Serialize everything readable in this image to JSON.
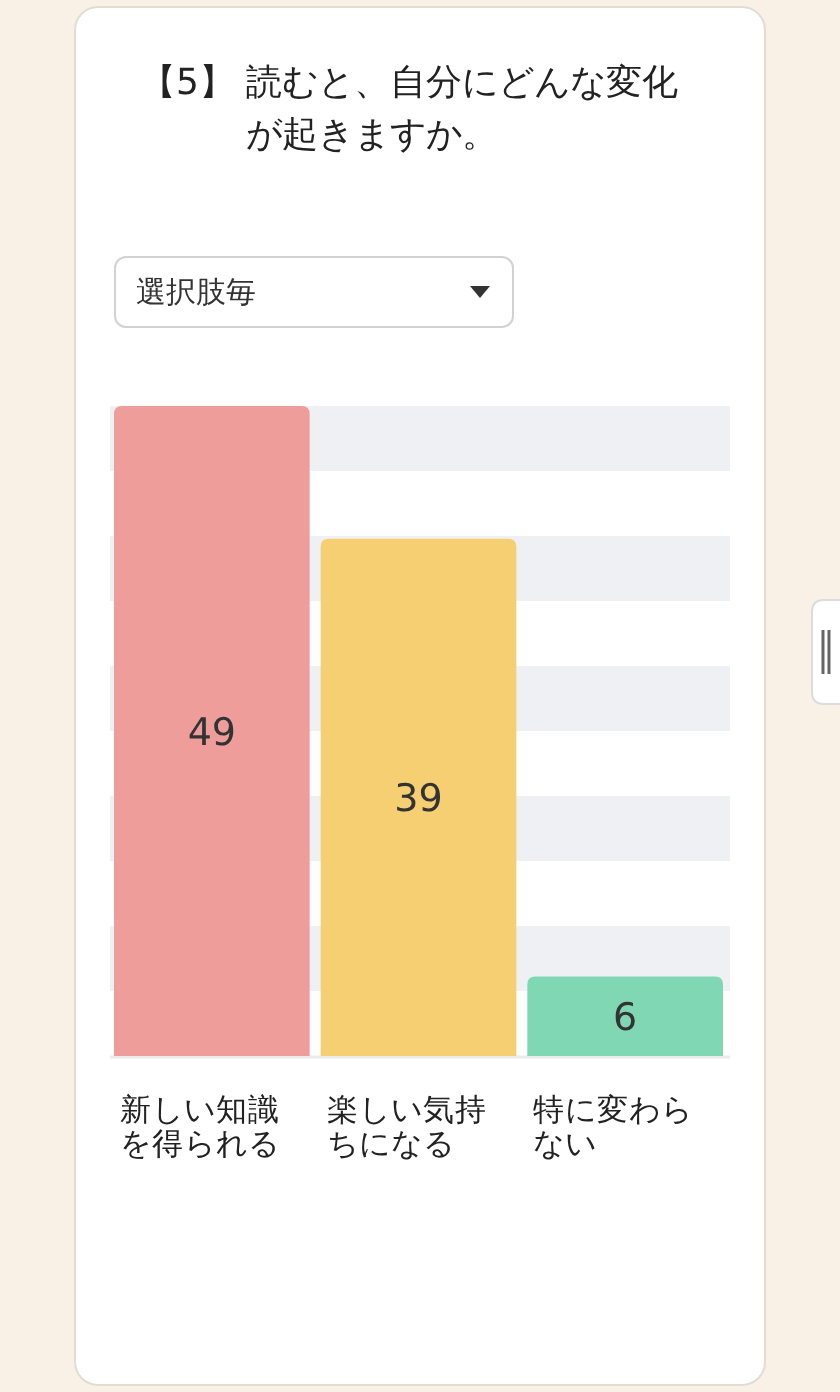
{
  "chart_data": {
    "type": "bar",
    "title": "【5】 読むと、自分にどんな変化が起きますか。",
    "annotations": [
      "選択肢毎"
    ],
    "categories": [
      "新しい知識を得られる",
      "楽しい気持ちになる",
      "特に変わらない"
    ],
    "values": [
      49,
      39,
      6
    ],
    "colors": [
      "#ef9d9a",
      "#f5cf72",
      "#80d7b4"
    ],
    "ylim": [
      0,
      49
    ],
    "bands": [
      {
        "axis": "y",
        "from": 44.1,
        "to": 49,
        "color": "#eff0f4"
      },
      {
        "axis": "y",
        "from": 34.3,
        "to": 39.2,
        "color": "#eff0f4"
      },
      {
        "axis": "y",
        "from": 24.5,
        "to": 29.4,
        "color": "#eff0f4"
      },
      {
        "axis": "y",
        "from": 14.7,
        "to": 19.6,
        "color": "#eff0f4"
      },
      {
        "axis": "y",
        "from": 4.9,
        "to": 9.8,
        "color": "#eff0f4"
      }
    ],
    "data_labels": true,
    "tick_labels": "x"
  }
}
